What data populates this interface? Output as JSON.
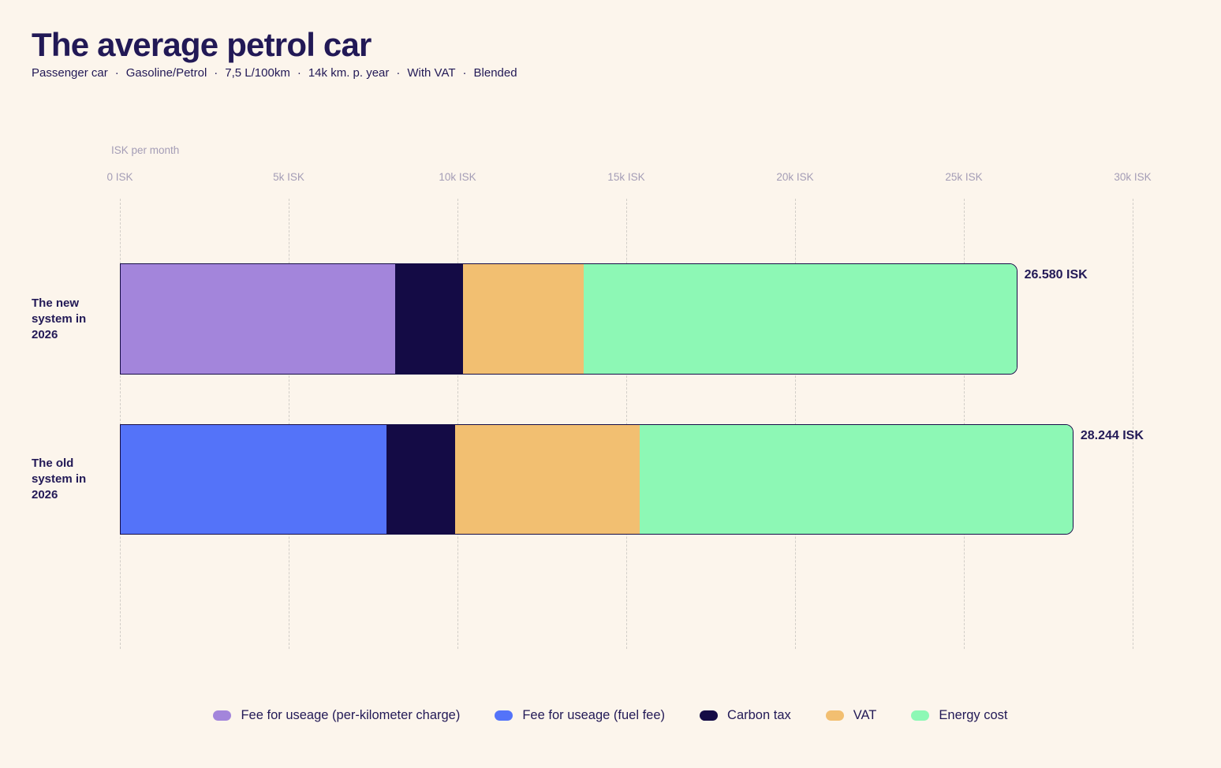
{
  "page": {
    "title": "The average petrol car",
    "subtitle_items": [
      "Passenger car",
      "Gasoline/Petrol",
      "7,5 L/100km",
      "14k km. p. year",
      "With VAT",
      "Blended"
    ],
    "subtitle_separator": "·"
  },
  "colors": {
    "background": "#FCF5EC",
    "text_dark": "#221956",
    "muted": "#A49DB6",
    "gridline": "#D2CEC8",
    "bar_border": "#150C45",
    "per_km": "#A385DB",
    "fuel_fee": "#5473F9",
    "carbon_tax": "#140B45",
    "vat": "#F2BF71",
    "energy": "#8DF8B5"
  },
  "chart_data": {
    "type": "bar",
    "orientation": "horizontal",
    "stacked": true,
    "axis_title": "ISK per month",
    "x_ticks": [
      "0 ISK",
      "5k ISK",
      "10k ISK",
      "15k ISK",
      "20k ISK",
      "25k ISK",
      "30k ISK"
    ],
    "x_tick_values": [
      0,
      5000,
      10000,
      15000,
      20000,
      25000,
      30000
    ],
    "xlim": [
      0,
      30000
    ],
    "grid": "vertical-dashed",
    "legend_position": "bottom-center",
    "categories": [
      "The new system in 2026",
      "The old system in 2026"
    ],
    "series": [
      {
        "name": "Fee for useage (per-kilometer charge)",
        "color_key": "per_km",
        "values": [
          8130,
          0
        ]
      },
      {
        "name": "Fee for useage (fuel fee)",
        "color_key": "fuel_fee",
        "values": [
          0,
          7874
        ]
      },
      {
        "name": "Carbon tax",
        "color_key": "carbon_tax",
        "values": [
          2010,
          2033
        ]
      },
      {
        "name": "VAT",
        "color_key": "vat",
        "values": [
          3575,
          5467
        ]
      },
      {
        "name": "Energy cost",
        "color_key": "energy",
        "values": [
          12865,
          12870
        ]
      }
    ],
    "totals": [
      26580,
      28244
    ],
    "total_labels": [
      "26.580 ISK",
      "28.244 ISK"
    ]
  }
}
